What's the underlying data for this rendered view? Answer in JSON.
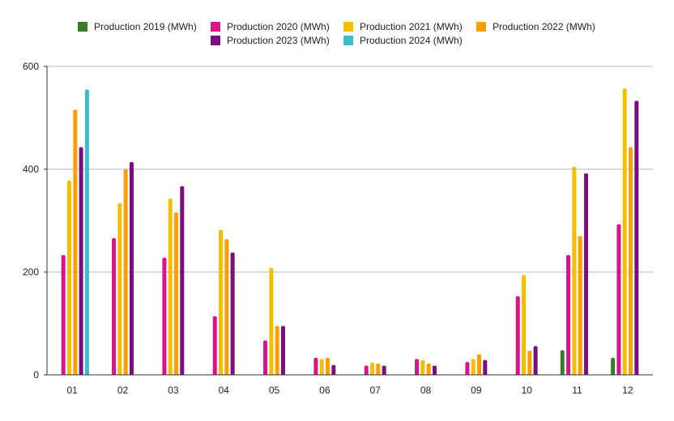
{
  "chart_data": {
    "type": "bar",
    "categories": [
      "01",
      "02",
      "03",
      "04",
      "05",
      "06",
      "07",
      "08",
      "09",
      "10",
      "11",
      "12"
    ],
    "series": [
      {
        "name": "Production 2019 (MWh)",
        "color": "#3c7a2a",
        "values": [
          null,
          null,
          null,
          null,
          null,
          null,
          null,
          null,
          null,
          null,
          48,
          33
        ]
      },
      {
        "name": "Production 2020 (MWh)",
        "color": "#d9138a",
        "values": [
          233,
          266,
          228,
          114,
          67,
          33,
          18,
          31,
          25,
          153,
          233,
          293
        ]
      },
      {
        "name": "Production 2021 (MWh)",
        "color": "#f5be00",
        "values": [
          378,
          334,
          343,
          282,
          208,
          31,
          24,
          29,
          31,
          194,
          405,
          557
        ]
      },
      {
        "name": "Production 2022 (MWh)",
        "color": "#ff9e00",
        "values": [
          516,
          400,
          316,
          264,
          95,
          33,
          22,
          22,
          40,
          47,
          270,
          443
        ]
      },
      {
        "name": "Production 2023 (MWh)",
        "color": "#7b0d7e",
        "values": [
          443,
          414,
          367,
          238,
          95,
          19,
          18,
          18,
          29,
          56,
          392,
          533
        ]
      },
      {
        "name": "Production 2024 (MWh)",
        "color": "#3fbcc9",
        "values": [
          555,
          null,
          null,
          null,
          null,
          null,
          null,
          null,
          null,
          null,
          null,
          null
        ]
      }
    ],
    "ylim": [
      0,
      600
    ],
    "yticks": [
      0,
      200,
      400,
      600
    ],
    "grid": true,
    "legend_position": "top"
  }
}
